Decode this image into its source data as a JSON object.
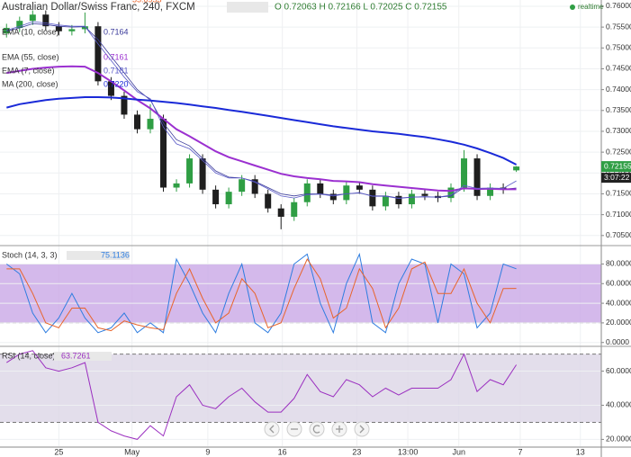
{
  "x_axis": {
    "xlim": [
      -0.5,
      45.5
    ],
    "xticks": [
      {
        "value": 4,
        "label": "25"
      },
      {
        "value": 9.6,
        "label": "May"
      },
      {
        "value": 15.4,
        "label": "9"
      },
      {
        "value": 21.1,
        "label": "16"
      },
      {
        "value": 26.8,
        "label": "23"
      },
      {
        "value": 30.7,
        "label": "13:00"
      },
      {
        "value": 34.6,
        "label": "Jun"
      },
      {
        "value": 39.3,
        "label": "7"
      },
      {
        "value": 43.9,
        "label": "13"
      }
    ]
  },
  "chart_data": [
    {
      "type": "candlestick",
      "title": "Australian Dollar/Swiss Franc, 240, FXCM",
      "ohlc_text": "O 0.72063 H 0.72166 L 0.72025 C 0.72155",
      "status": "realtime",
      "last_price_label": "0.72155",
      "countdown": "3:07:22",
      "up_color": "#2f9e44",
      "down_color": "#1e1e1e",
      "ylim": [
        0.7028,
        0.7615
      ],
      "yticks": [
        {
          "value": 0.76,
          "label": "0.76000"
        },
        {
          "value": 0.755,
          "label": "0.75500"
        },
        {
          "value": 0.75,
          "label": "0.75000"
        },
        {
          "value": 0.745,
          "label": "0.74500"
        },
        {
          "value": 0.74,
          "label": "0.74000"
        },
        {
          "value": 0.735,
          "label": "0.73500"
        },
        {
          "value": 0.73,
          "label": "0.73000"
        },
        {
          "value": 0.725,
          "label": "0.72500"
        },
        {
          "value": 0.72,
          "label": "0.72000"
        },
        {
          "value": 0.715,
          "label": "0.71500"
        },
        {
          "value": 0.71,
          "label": "0.71000"
        },
        {
          "value": 0.705,
          "label": "0.70500"
        }
      ],
      "open": [
        0.7535,
        0.7548,
        0.7565,
        0.758,
        0.7552,
        0.754,
        0.7545,
        0.7552,
        0.742,
        0.7385,
        0.734,
        0.7305,
        0.733,
        0.7165,
        0.7175,
        0.7235,
        0.716,
        0.7125,
        0.7155,
        0.7185,
        0.715,
        0.7115,
        0.7095,
        0.713,
        0.7175,
        0.715,
        0.7135,
        0.717,
        0.716,
        0.712,
        0.7145,
        0.7125,
        0.715,
        0.7145,
        0.714,
        0.7165,
        0.7235,
        0.7145,
        0.7165,
        0.72063
      ],
      "high": [
        0.7558,
        0.7575,
        0.759,
        0.759,
        0.7562,
        0.7555,
        0.7585,
        0.7562,
        0.743,
        0.7395,
        0.735,
        0.7365,
        0.734,
        0.7185,
        0.7245,
        0.7245,
        0.717,
        0.7165,
        0.7195,
        0.7195,
        0.716,
        0.7125,
        0.714,
        0.7185,
        0.7185,
        0.716,
        0.718,
        0.718,
        0.717,
        0.7155,
        0.7155,
        0.716,
        0.716,
        0.7155,
        0.7175,
        0.7255,
        0.7245,
        0.7175,
        0.7175,
        0.72166
      ],
      "low": [
        0.7525,
        0.7538,
        0.7555,
        0.7542,
        0.753,
        0.753,
        0.7535,
        0.741,
        0.7375,
        0.733,
        0.7295,
        0.7295,
        0.7155,
        0.7155,
        0.7165,
        0.715,
        0.7115,
        0.7115,
        0.7145,
        0.714,
        0.7105,
        0.7065,
        0.7085,
        0.712,
        0.714,
        0.7125,
        0.7125,
        0.715,
        0.711,
        0.711,
        0.7115,
        0.7115,
        0.7135,
        0.713,
        0.713,
        0.7155,
        0.7135,
        0.7135,
        0.715,
        0.72025
      ],
      "close": [
        0.7548,
        0.7565,
        0.758,
        0.7552,
        0.754,
        0.7545,
        0.7552,
        0.742,
        0.7385,
        0.734,
        0.7305,
        0.733,
        0.7165,
        0.7175,
        0.7235,
        0.716,
        0.7125,
        0.7155,
        0.7185,
        0.715,
        0.7115,
        0.7095,
        0.713,
        0.7175,
        0.715,
        0.7135,
        0.717,
        0.716,
        0.712,
        0.7145,
        0.7125,
        0.715,
        0.7145,
        0.714,
        0.7165,
        0.7235,
        0.7145,
        0.7165,
        0.716,
        0.72155
      ],
      "series": [
        {
          "name": "EMA (10, close)",
          "legend_value": "0.7164",
          "color": "#3a3a9a",
          "width": 0.8,
          "values": [
            0.754,
            0.7548,
            0.7558,
            0.7556,
            0.7552,
            0.755,
            0.7551,
            0.752,
            0.748,
            0.744,
            0.74,
            0.7375,
            0.732,
            0.728,
            0.7265,
            0.7235,
            0.7205,
            0.719,
            0.7188,
            0.718,
            0.7165,
            0.715,
            0.7145,
            0.715,
            0.715,
            0.7147,
            0.715,
            0.7152,
            0.7145,
            0.7145,
            0.714,
            0.7142,
            0.7143,
            0.7142,
            0.7145,
            0.7165,
            0.716,
            0.7162,
            0.7161,
            0.7164
          ]
        },
        {
          "name": "EMA (55, close)",
          "legend_value": "0.7161",
          "color": "#9b30d0",
          "width": 2,
          "values": [
            0.744,
            0.7445,
            0.745,
            0.7453,
            0.7455,
            0.7456,
            0.7455,
            0.744,
            0.742,
            0.7398,
            0.7375,
            0.7355,
            0.733,
            0.7305,
            0.7288,
            0.727,
            0.7252,
            0.7238,
            0.7228,
            0.7218,
            0.7208,
            0.7198,
            0.7192,
            0.7188,
            0.7185,
            0.7181,
            0.718,
            0.7178,
            0.7173,
            0.717,
            0.7167,
            0.7164,
            0.7161,
            0.7158,
            0.7157,
            0.7163,
            0.7162,
            0.7162,
            0.7161,
            0.7161
          ]
        },
        {
          "name": "EMA (7, close)",
          "legend_value": "0.7181",
          "color": "#5a5ac8",
          "width": 0.8,
          "values": [
            0.7542,
            0.7552,
            0.7563,
            0.756,
            0.7555,
            0.7552,
            0.7552,
            0.751,
            0.747,
            0.743,
            0.7395,
            0.7378,
            0.731,
            0.727,
            0.7258,
            0.723,
            0.72,
            0.7188,
            0.7188,
            0.7178,
            0.7162,
            0.7145,
            0.714,
            0.7148,
            0.7149,
            0.7145,
            0.715,
            0.7153,
            0.7144,
            0.7144,
            0.7139,
            0.7142,
            0.7143,
            0.7142,
            0.7147,
            0.717,
            0.7163,
            0.7164,
            0.7163,
            0.7181
          ]
        },
        {
          "name": "MA (200, close)",
          "legend_value": "0.7220",
          "color": "#1a2ad8",
          "width": 2,
          "values": [
            0.7357,
            0.7365,
            0.737,
            0.7375,
            0.7378,
            0.738,
            0.7382,
            0.7382,
            0.7381,
            0.7379,
            0.7376,
            0.7374,
            0.7371,
            0.7368,
            0.7364,
            0.736,
            0.7356,
            0.7351,
            0.7347,
            0.7342,
            0.7337,
            0.7332,
            0.7327,
            0.7322,
            0.7317,
            0.7312,
            0.7308,
            0.7304,
            0.73,
            0.7297,
            0.7294,
            0.729,
            0.7286,
            0.7281,
            0.7275,
            0.7268,
            0.7259,
            0.7248,
            0.7236,
            0.722
          ]
        }
      ]
    },
    {
      "type": "line",
      "title": "Stoch (14, 3, 3)",
      "ylim": [
        -3,
        96
      ],
      "band": [
        20,
        80
      ],
      "band_color": "#c9a8e6",
      "yticks": [
        {
          "value": 80,
          "label": "80.0000"
        },
        {
          "value": 60,
          "label": "60.0000"
        },
        {
          "value": 40,
          "label": "40.0000"
        },
        {
          "value": 20,
          "label": "20.0000"
        },
        {
          "value": 0,
          "label": "0.0000"
        }
      ],
      "series": [
        {
          "legend_value": "75.1136",
          "color": "#2e7de0",
          "width": 1,
          "values": [
            80,
            70,
            30,
            10,
            25,
            50,
            25,
            10,
            15,
            30,
            10,
            20,
            10,
            85,
            60,
            30,
            10,
            50,
            80,
            20,
            10,
            30,
            80,
            90,
            40,
            10,
            60,
            90,
            20,
            10,
            60,
            85,
            80,
            20,
            80,
            70,
            15,
            30,
            80,
            75.1136
          ]
        },
        {
          "legend_value": "55.0953",
          "color": "#e8642a",
          "width": 1,
          "values": [
            75,
            75,
            50,
            20,
            15,
            35,
            35,
            15,
            12,
            22,
            18,
            15,
            13,
            50,
            75,
            45,
            20,
            30,
            65,
            50,
            15,
            20,
            55,
            85,
            65,
            25,
            35,
            75,
            55,
            15,
            35,
            75,
            82,
            50,
            50,
            75,
            40,
            20,
            55,
            55.0953
          ]
        }
      ]
    },
    {
      "type": "line",
      "title": "RSI (14, close)",
      "ylim": [
        16,
        74
      ],
      "band": [
        30,
        70
      ],
      "band_color": "#dcd6e6",
      "yticks": [
        {
          "value": 60,
          "label": "60.0000"
        },
        {
          "value": 40,
          "label": "40.0000"
        },
        {
          "value": 20,
          "label": "20.0000"
        }
      ],
      "series": [
        {
          "legend_value": "63.7261",
          "color": "#9b30c0",
          "width": 1,
          "values": [
            65,
            70,
            72,
            62,
            60,
            62,
            65,
            30,
            25,
            22,
            20,
            28,
            22,
            45,
            52,
            40,
            38,
            45,
            50,
            42,
            36,
            36,
            44,
            58,
            48,
            45,
            55,
            52,
            45,
            50,
            46,
            50,
            50,
            50,
            55,
            70,
            48,
            55,
            52,
            63.7261
          ]
        }
      ]
    }
  ]
}
